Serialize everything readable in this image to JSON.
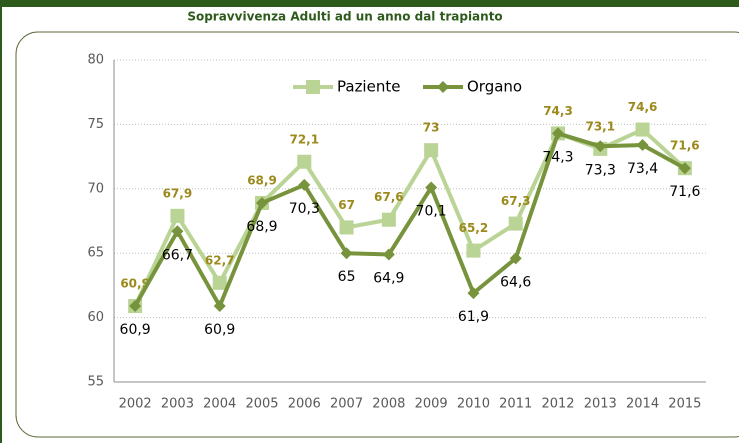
{
  "chart_data": {
    "type": "line",
    "title": "Sopravvivenza Adulti   ad un anno dal trapianto",
    "categories": [
      "2002",
      "2003",
      "2004",
      "2005",
      "2006",
      "2007",
      "2008",
      "2009",
      "2010",
      "2011",
      "2012",
      "2013",
      "2014",
      "2015"
    ],
    "series": [
      {
        "name": "Paziente",
        "color": "#b9d494",
        "marker": "square",
        "values": [
          60.9,
          67.9,
          62.7,
          68.9,
          72.1,
          67,
          67.6,
          73,
          65.2,
          67.3,
          74.3,
          73.1,
          74.6,
          71.6
        ],
        "value_labels": [
          "60,9",
          "67,9",
          "62,7",
          "68,9",
          "72,1",
          "67",
          "67,6",
          "73",
          "65,2",
          "67,3",
          "74,3",
          "73,1",
          "74,6",
          "71,6"
        ]
      },
      {
        "name": "Organo",
        "color": "#77933c",
        "marker": "diamond",
        "values": [
          60.9,
          66.7,
          60.9,
          68.9,
          70.3,
          65,
          64.9,
          70.1,
          61.9,
          64.6,
          74.3,
          73.3,
          73.4,
          71.6
        ],
        "value_labels": [
          "60,9",
          "66,7",
          "60,9",
          "68,9",
          "70,3",
          "65",
          "64,9",
          "70,1",
          "61,9",
          "64,6",
          "74,3",
          "73,3",
          "73,4",
          "71,6"
        ]
      }
    ],
    "ylim": [
      55,
      80
    ],
    "yticks": [
      55,
      60,
      65,
      70,
      75,
      80
    ],
    "grid": true,
    "legend": "top"
  }
}
